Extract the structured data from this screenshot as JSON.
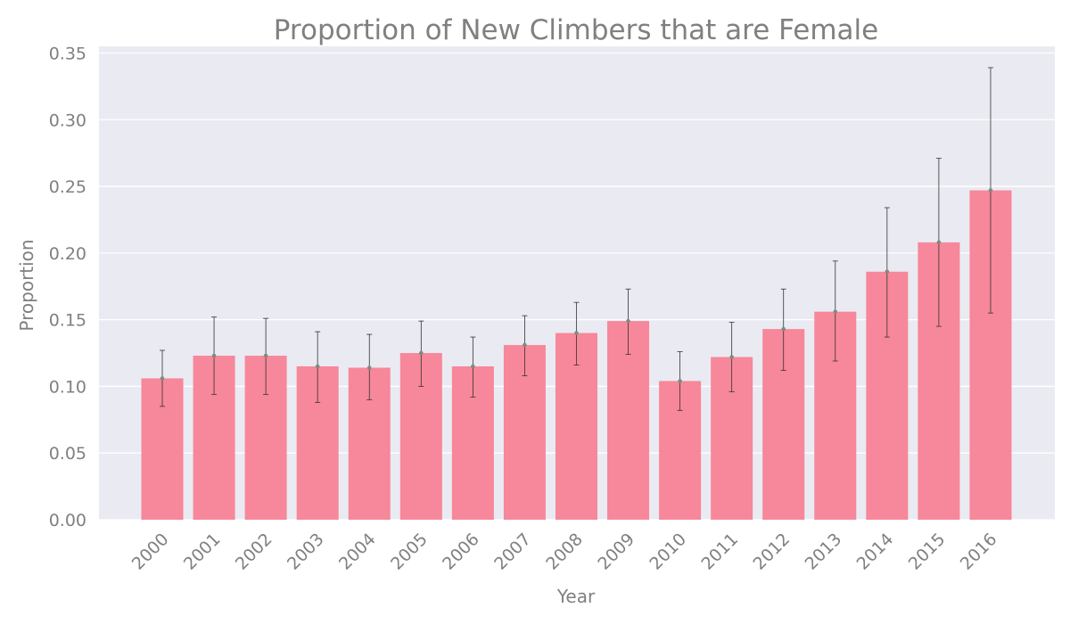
{
  "chart_data": {
    "type": "bar",
    "title": "Proportion of New Climbers that are Female",
    "xlabel": "Year",
    "ylabel": "Proportion",
    "categories": [
      "2000",
      "2001",
      "2002",
      "2003",
      "2004",
      "2005",
      "2006",
      "2007",
      "2008",
      "2009",
      "2010",
      "2011",
      "2012",
      "2013",
      "2014",
      "2015",
      "2016"
    ],
    "values": [
      0.106,
      0.123,
      0.123,
      0.115,
      0.114,
      0.125,
      0.115,
      0.131,
      0.14,
      0.149,
      0.104,
      0.122,
      0.143,
      0.156,
      0.186,
      0.208,
      0.247
    ],
    "error_lower": [
      0.085,
      0.094,
      0.094,
      0.088,
      0.09,
      0.1,
      0.092,
      0.108,
      0.116,
      0.124,
      0.082,
      0.096,
      0.112,
      0.119,
      0.137,
      0.145,
      0.155
    ],
    "error_upper": [
      0.127,
      0.152,
      0.151,
      0.141,
      0.139,
      0.149,
      0.137,
      0.153,
      0.163,
      0.173,
      0.126,
      0.148,
      0.173,
      0.194,
      0.234,
      0.271,
      0.339
    ],
    "ylim": [
      0,
      0.355
    ],
    "yticks": [
      "0.00",
      "0.05",
      "0.10",
      "0.15",
      "0.20",
      "0.25",
      "0.30",
      "0.35"
    ],
    "ytick_values": [
      0,
      0.05,
      0.1,
      0.15,
      0.2,
      0.25,
      0.3,
      0.35
    ],
    "grid": true,
    "colors": {
      "bar": "#f7879a",
      "plot_background": "#eaeaf2",
      "grid": "#ffffff",
      "errorbar": "#333333",
      "point": "#7f8c7d",
      "text": "#808080"
    }
  }
}
